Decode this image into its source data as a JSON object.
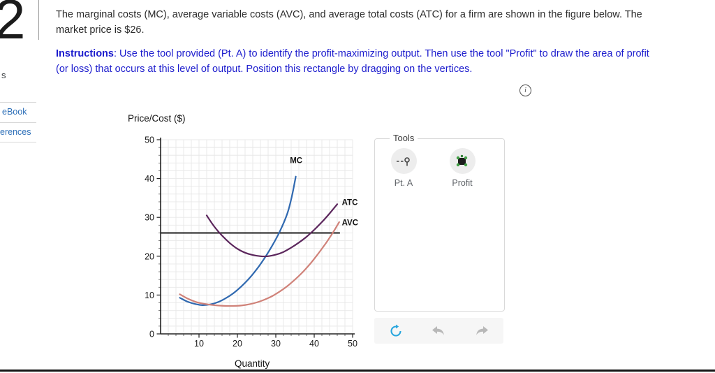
{
  "question": {
    "number": "2",
    "lines": [
      "The marginal costs (MC), average variable costs (AVC), and average total costs (ATC) for a firm are shown in the figure below. The",
      "market price is $26."
    ],
    "instructions_label": "Instructions",
    "instructions_line1_rest": ": Use the tool provided (Pt. A) to identify the profit-maximizing output. Then use the tool \"Profit\" to draw the area of profit",
    "instructions_line2": "(or loss) that occurs at this level of output. Position this rectangle by dragging on the vertices."
  },
  "sidebar": {
    "items": [
      {
        "label": "s"
      },
      {
        "label": "eBook"
      },
      {
        "label": "erences"
      }
    ]
  },
  "icons": {
    "info": "i"
  },
  "tools": {
    "title": "Tools",
    "items": [
      {
        "label": "Pt. A",
        "icon": "point-tool-icon"
      },
      {
        "label": "Profit",
        "icon": "profit-rect-tool-icon"
      }
    ],
    "actions": [
      {
        "icon": "reset-icon",
        "color": "#28a6de"
      },
      {
        "icon": "undo-icon",
        "color": "#b8b8b8"
      },
      {
        "icon": "redo-icon",
        "color": "#b8b8b8"
      }
    ]
  },
  "chart_data": {
    "type": "line",
    "title": "",
    "xlabel": "Quantity",
    "ylabel": "Price/Cost ($)",
    "xlim": [
      0,
      50
    ],
    "ylim": [
      0,
      50
    ],
    "xticks": [
      10,
      20,
      30,
      40,
      50
    ],
    "yticks": [
      0,
      10,
      20,
      30,
      40,
      50
    ],
    "grid_step": 2,
    "grid": true,
    "price_line": {
      "name": "market-price-line",
      "value": 26,
      "x_start": 0,
      "x_end": 46.7,
      "color": "#1c1c1c"
    },
    "series": [
      {
        "name": "MC",
        "color": "#3069b0",
        "label_pos": [
          35.3,
          44
        ],
        "label_anchor": "middle",
        "points": [
          [
            5,
            9.3
          ],
          [
            7,
            8.3
          ],
          [
            9,
            7.7
          ],
          [
            11,
            7.4
          ],
          [
            13,
            7.6
          ],
          [
            15,
            8.2
          ],
          [
            17,
            9.2
          ],
          [
            19,
            10.5
          ],
          [
            21,
            12.2
          ],
          [
            23,
            14.2
          ],
          [
            25,
            16.6
          ],
          [
            27,
            19.4
          ],
          [
            29,
            22.6
          ],
          [
            31,
            26.3
          ],
          [
            33,
            31
          ],
          [
            34.2,
            35.5
          ],
          [
            35.2,
            40.5
          ]
        ]
      },
      {
        "name": "ATC",
        "color": "#5b265c",
        "label_pos": [
          47.2,
          33.2
        ],
        "label_anchor": "start",
        "points": [
          [
            12,
            30.5
          ],
          [
            14,
            27.6
          ],
          [
            16,
            25.3
          ],
          [
            18,
            23.4
          ],
          [
            20,
            21.9
          ],
          [
            22,
            20.9
          ],
          [
            24,
            20.3
          ],
          [
            26,
            20
          ],
          [
            28,
            20
          ],
          [
            30,
            20.4
          ],
          [
            32,
            21.1
          ],
          [
            34,
            22.2
          ],
          [
            36,
            23.5
          ],
          [
            38,
            25
          ],
          [
            40,
            26.8
          ],
          [
            42,
            28.8
          ],
          [
            44,
            31
          ],
          [
            46,
            33.4
          ]
        ]
      },
      {
        "name": "AVC",
        "color": "#d08279",
        "label_pos": [
          47.2,
          28
        ],
        "label_anchor": "start",
        "points": [
          [
            5,
            10.2
          ],
          [
            7,
            9.1
          ],
          [
            9,
            8.3
          ],
          [
            11,
            7.8
          ],
          [
            13,
            7.5
          ],
          [
            15,
            7.3
          ],
          [
            17,
            7.2
          ],
          [
            19,
            7.2
          ],
          [
            21,
            7.3
          ],
          [
            23,
            7.6
          ],
          [
            25,
            8.1
          ],
          [
            27,
            8.8
          ],
          [
            29,
            9.7
          ],
          [
            31,
            10.9
          ],
          [
            33,
            12.3
          ],
          [
            35,
            14
          ],
          [
            37,
            15.9
          ],
          [
            39,
            18.1
          ],
          [
            41,
            20.6
          ],
          [
            43,
            23.3
          ],
          [
            45,
            26.3
          ],
          [
            46.5,
            28.8
          ]
        ]
      }
    ]
  }
}
